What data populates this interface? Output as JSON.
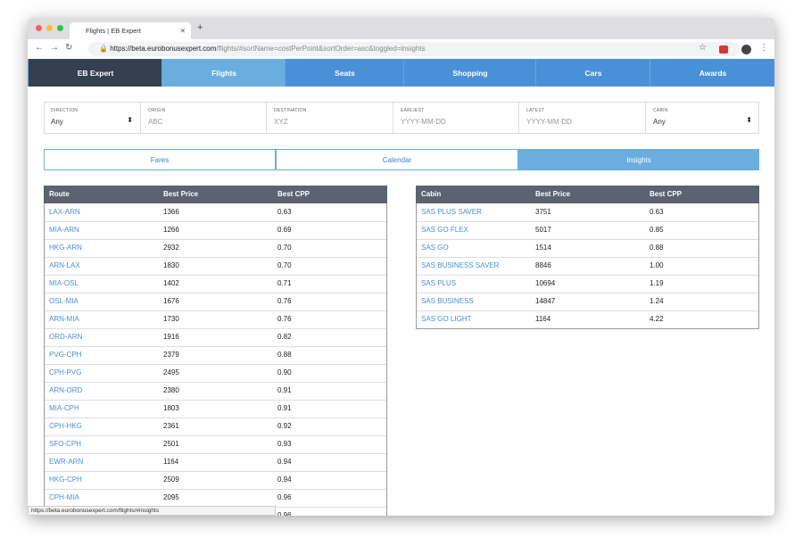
{
  "browser": {
    "tab_title": "Flights | EB Expert",
    "url_host": "https://beta.eurobonusexpert.com",
    "url_path": "/flights/#sortName=costPerPoint&sortOrder=asc&toggled=insights",
    "status_url": "https://beta.eurobonusexpert.com/flights/#insights"
  },
  "nav": [
    "EB Expert",
    "Flights",
    "Seats",
    "Shopping",
    "Cars",
    "Awards"
  ],
  "filters": [
    {
      "label": "DIRECTION",
      "value": "Any"
    },
    {
      "label": "ORIGIN",
      "value": "ABC"
    },
    {
      "label": "DESTINATION",
      "value": "XYZ"
    },
    {
      "label": "EARLIEST",
      "value": "YYYY-MM-DD"
    },
    {
      "label": "LATEST",
      "value": "YYYY-MM-DD"
    },
    {
      "label": "CABIN",
      "value": "Any"
    }
  ],
  "view_tabs": [
    "Fares",
    "Calendar",
    "Insights"
  ],
  "left_table": {
    "headers": [
      "Route",
      "Best Price",
      "Best CPP"
    ],
    "rows": [
      [
        "LAX-ARN",
        "1366",
        "0.63"
      ],
      [
        "MIA-ARN",
        "1266",
        "0.69"
      ],
      [
        "HKG-ARN",
        "2932",
        "0.70"
      ],
      [
        "ARN-LAX",
        "1830",
        "0.70"
      ],
      [
        "MIA-OSL",
        "1402",
        "0.71"
      ],
      [
        "OSL-MIA",
        "1676",
        "0.76"
      ],
      [
        "ARN-MIA",
        "1730",
        "0.76"
      ],
      [
        "ORD-ARN",
        "1916",
        "0.82"
      ],
      [
        "PVG-CPH",
        "2379",
        "0.88"
      ],
      [
        "CPH-PVG",
        "2495",
        "0.90"
      ],
      [
        "ARN-ORD",
        "2380",
        "0.91"
      ],
      [
        "MIA-CPH",
        "1803",
        "0.91"
      ],
      [
        "CPH-HKG",
        "2361",
        "0.92"
      ],
      [
        "SFO-CPH",
        "2501",
        "0.93"
      ],
      [
        "EWR-ARN",
        "1164",
        "0.94"
      ],
      [
        "HKG-CPH",
        "2509",
        "0.94"
      ],
      [
        "CPH-MIA",
        "2095",
        "0.96"
      ]
    ],
    "cut_row_cpp": "0.96"
  },
  "right_table": {
    "headers": [
      "Cabin",
      "Best Price",
      "Best CPP"
    ],
    "rows": [
      [
        "SAS PLUS SAVER",
        "3751",
        "0.63"
      ],
      [
        "SAS GO FLEX",
        "5017",
        "0.85"
      ],
      [
        "SAS GO",
        "1514",
        "0.88"
      ],
      [
        "SAS BUSINESS SAVER",
        "8846",
        "1.00"
      ],
      [
        "SAS PLUS",
        "10694",
        "1.19"
      ],
      [
        "SAS BUSINESS",
        "14847",
        "1.24"
      ],
      [
        "SAS GO LIGHT",
        "1164",
        "4.22"
      ]
    ]
  }
}
